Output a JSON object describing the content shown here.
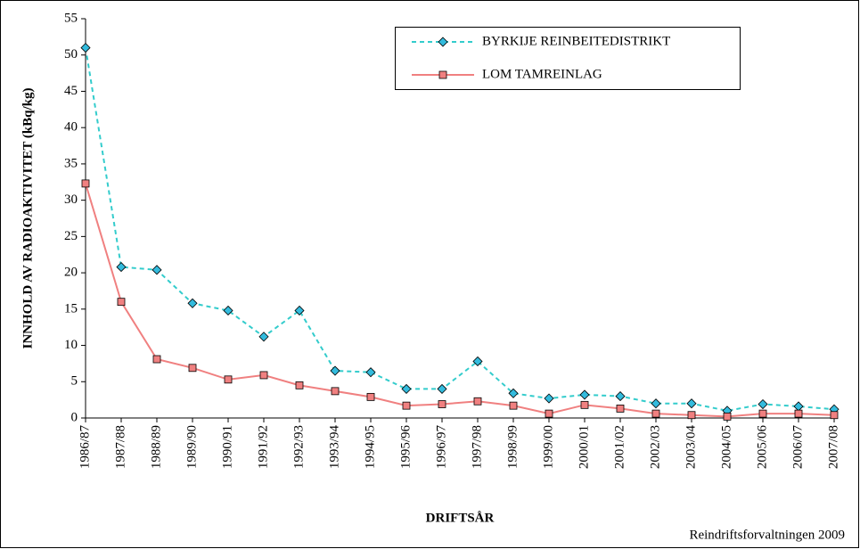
{
  "chart_data": {
    "type": "line",
    "y_label": "INNHOLD AV RADIOAKTIVITET (kBq/kg)",
    "x_label": "DRIFTSÅR",
    "source": "Reindriftsforvaltningen 2009",
    "categories": [
      "1986/87",
      "1987/88",
      "1988/89",
      "1989/90",
      "1990/91",
      "1991/92",
      "1992/93",
      "1993/94",
      "1994/95",
      "1995/96",
      "1996/97",
      "1997/98",
      "1998/99",
      "1999/00",
      "2000/01",
      "2001/02",
      "2002/03",
      "2003/04",
      "2004/05",
      "2005/06",
      "2006/07",
      "2007/08"
    ],
    "series": [
      {
        "name": "BYRKIJE REINBEITEDISTRIKT",
        "color": "#33cccc",
        "marker_color": "#33bbdd",
        "marker": "diamond",
        "dash": true,
        "values": [
          51,
          20.8,
          20.4,
          15.8,
          14.8,
          11.2,
          14.8,
          6.5,
          6.3,
          4.0,
          4.0,
          7.8,
          3.4,
          2.7,
          3.2,
          3.0,
          2.0,
          2.0,
          1.0,
          1.9,
          1.6,
          1.2
        ]
      },
      {
        "name": "LOM TAMREINLAG",
        "color": "#f08080",
        "marker_color": "#f08080",
        "marker": "square",
        "dash": false,
        "values": [
          32.3,
          16.0,
          8.1,
          6.9,
          5.3,
          5.9,
          4.5,
          3.7,
          2.9,
          1.7,
          1.9,
          2.3,
          1.7,
          0.6,
          1.8,
          1.3,
          0.6,
          0.4,
          0.2,
          0.6,
          0.6,
          0.4
        ]
      }
    ],
    "ylim": [
      0,
      55
    ],
    "yticks": [
      0,
      5,
      10,
      15,
      20,
      25,
      30,
      35,
      40,
      45,
      50,
      55
    ]
  }
}
